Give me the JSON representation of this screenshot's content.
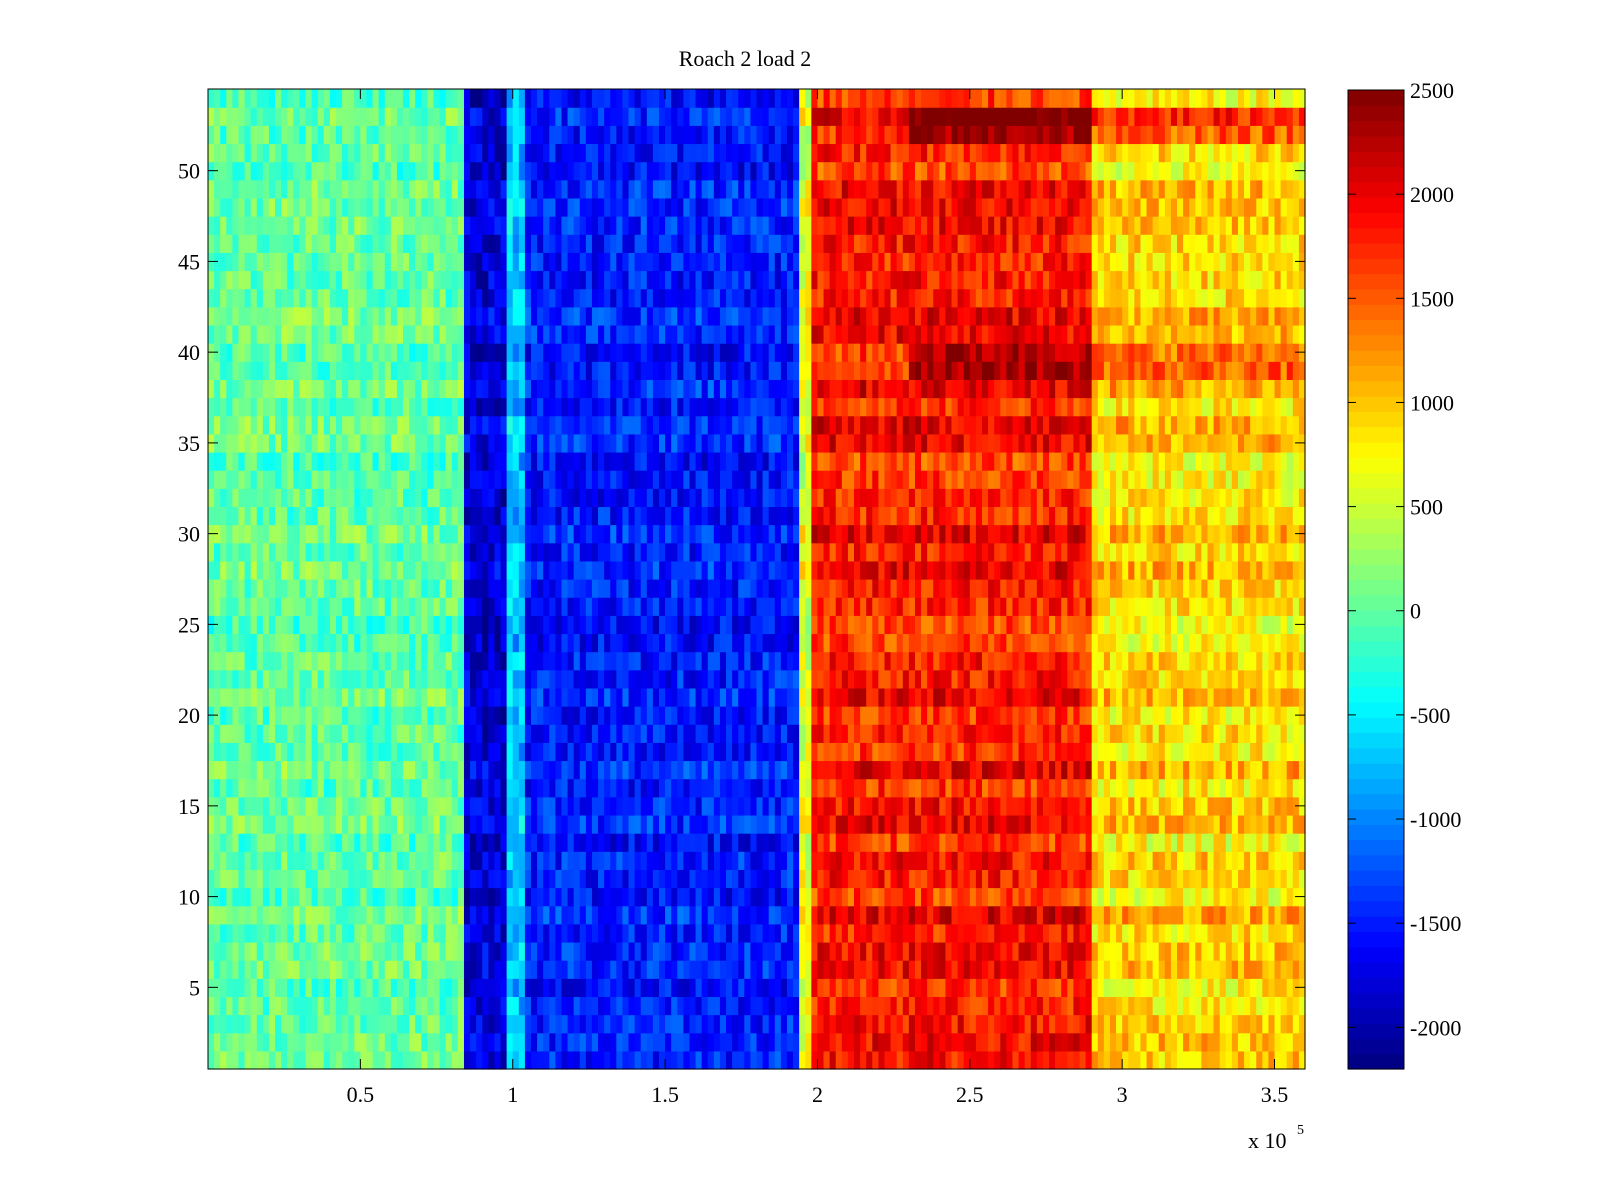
{
  "chart_data": {
    "type": "heatmap",
    "title": "Roach 2 load 2",
    "xlabel": "",
    "ylabel": "",
    "x_multiplier_base": "x 10",
    "x_multiplier_exponent": "5",
    "xlim": [
      0,
      3.6
    ],
    "ylim": [
      0.5,
      54.5
    ],
    "x_ticks": [
      0.5,
      1,
      1.5,
      2,
      2.5,
      3,
      3.5
    ],
    "x_tick_labels": [
      "0.5",
      "1",
      "1.5",
      "2",
      "2.5",
      "3",
      "3.5"
    ],
    "y_ticks": [
      5,
      10,
      15,
      20,
      25,
      30,
      35,
      40,
      45,
      50
    ],
    "y_tick_labels": [
      "5",
      "10",
      "15",
      "20",
      "25",
      "30",
      "35",
      "40",
      "45",
      "50"
    ],
    "rows": 54,
    "colormap": "jet",
    "colorbar": {
      "range": [
        -2200,
        2500
      ],
      "ticks": [
        2500,
        2000,
        1500,
        1000,
        500,
        0,
        -500,
        -1000,
        -1500,
        -2000
      ],
      "tick_labels": [
        "2500",
        "2000",
        "1500",
        "1000",
        "500",
        "0",
        "-500",
        "-1000",
        "-1500",
        "-2000"
      ],
      "levels": 64,
      "placement": "right"
    },
    "grid": false,
    "regions": [
      {
        "x_range": [
          0.0,
          0.85
        ],
        "approx_value": 0
      },
      {
        "x_range": [
          0.85,
          0.98
        ],
        "approx_value": -1800
      },
      {
        "x_range": [
          0.98,
          1.05
        ],
        "approx_value": -700
      },
      {
        "x_range": [
          1.05,
          1.94
        ],
        "approx_value": -1500
      },
      {
        "x_range": [
          1.94,
          1.98
        ],
        "approx_value": 600
      },
      {
        "x_range": [
          1.98,
          2.9
        ],
        "approx_value": 1800
      },
      {
        "x_range": [
          2.9,
          3.6
        ],
        "approx_value": 900
      }
    ]
  }
}
